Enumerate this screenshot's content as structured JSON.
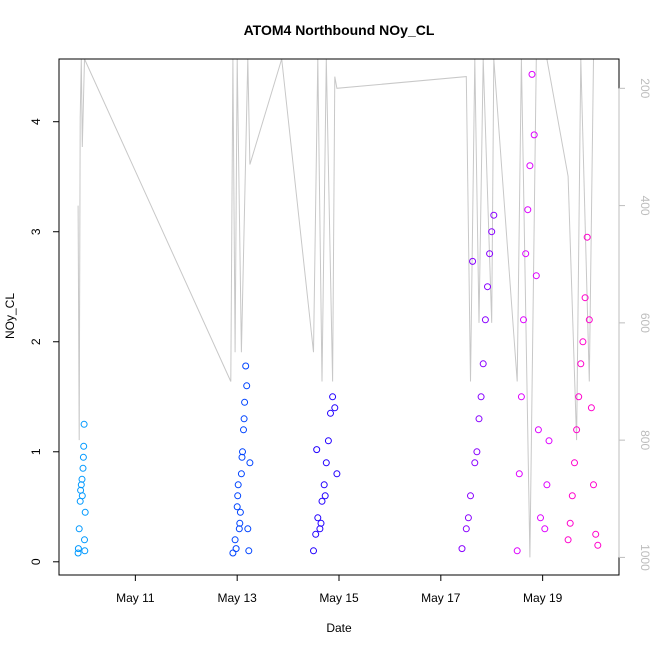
{
  "chart_data": {
    "type": "scatter",
    "title": "ATOM4 Northbound NOy_CL",
    "xlabel": "Date",
    "ylabel": "NOy_CL",
    "xlim": [
      "2018-05-09T12:00",
      "2018-05-20T12:00"
    ],
    "ylim": [
      -0.12,
      4.57
    ],
    "x_tick_labels": [
      "May 11",
      "May 13",
      "May 15",
      "May 17",
      "May 19"
    ],
    "x_ticks": [
      "2018-05-11",
      "2018-05-13",
      "2018-05-15",
      "2018-05-17",
      "2018-05-19"
    ],
    "y_ticks": [
      0,
      1,
      2,
      3,
      4
    ],
    "y_tick_labels": [
      "0",
      "1",
      "2",
      "3",
      "4"
    ],
    "right_axis": {
      "reversed": true,
      "ticks": [
        200,
        400,
        600,
        800,
        1000
      ],
      "tick_labels": [
        "200",
        "400",
        "600",
        "800",
        "1000"
      ],
      "ylim": [
        1030,
        150
      ],
      "color": "#bdbdbd"
    },
    "grid": false,
    "legend": "none",
    "series": [
      {
        "color": "#0099ff",
        "points": [
          [
            "2018-05-09T21:00",
            0.08
          ],
          [
            "2018-05-09T21:30",
            0.3
          ],
          [
            "2018-05-09T22:00",
            0.55
          ],
          [
            "2018-05-09T22:30",
            0.7
          ],
          [
            "2018-05-09T23:00",
            0.6
          ],
          [
            "2018-05-09T23:20",
            0.85
          ],
          [
            "2018-05-09T23:40",
            1.05
          ],
          [
            "2018-05-09T23:50",
            1.25
          ],
          [
            "2018-05-10T00:00",
            0.2
          ],
          [
            "2018-05-10T00:20",
            0.45
          ],
          [
            "2018-05-09T21:10",
            0.12
          ],
          [
            "2018-05-09T22:10",
            0.65
          ],
          [
            "2018-05-09T22:50",
            0.75
          ],
          [
            "2018-05-09T23:30",
            0.95
          ],
          [
            "2018-05-10T00:10",
            0.1
          ]
        ]
      },
      {
        "color": "#0044ff",
        "points": [
          [
            "2018-05-12T22:00",
            0.08
          ],
          [
            "2018-05-12T23:00",
            0.2
          ],
          [
            "2018-05-13T00:00",
            0.5
          ],
          [
            "2018-05-13T00:30",
            0.7
          ],
          [
            "2018-05-13T01:00",
            0.3
          ],
          [
            "2018-05-13T01:30",
            0.45
          ],
          [
            "2018-05-13T02:00",
            0.8
          ],
          [
            "2018-05-13T02:30",
            1.0
          ],
          [
            "2018-05-13T03:00",
            1.2
          ],
          [
            "2018-05-13T03:30",
            1.45
          ],
          [
            "2018-05-13T04:00",
            1.78
          ],
          [
            "2018-05-13T04:30",
            1.6
          ],
          [
            "2018-05-13T05:00",
            0.3
          ],
          [
            "2018-05-13T05:30",
            0.1
          ],
          [
            "2018-05-13T06:00",
            0.9
          ],
          [
            "2018-05-12T23:30",
            0.12
          ],
          [
            "2018-05-13T00:15",
            0.6
          ],
          [
            "2018-05-13T01:15",
            0.35
          ],
          [
            "2018-05-13T02:15",
            0.95
          ],
          [
            "2018-05-13T03:15",
            1.3
          ]
        ]
      },
      {
        "color": "#2200ff",
        "points": [
          [
            "2018-05-14T12:00",
            0.1
          ],
          [
            "2018-05-14T13:00",
            0.25
          ],
          [
            "2018-05-14T14:00",
            0.4
          ],
          [
            "2018-05-14T15:00",
            0.3
          ],
          [
            "2018-05-14T16:00",
            0.55
          ],
          [
            "2018-05-14T17:00",
            0.7
          ],
          [
            "2018-05-14T18:00",
            0.9
          ],
          [
            "2018-05-14T19:00",
            1.1
          ],
          [
            "2018-05-14T20:00",
            1.35
          ],
          [
            "2018-05-14T21:00",
            1.5
          ],
          [
            "2018-05-14T22:00",
            1.4
          ],
          [
            "2018-05-14T23:00",
            0.8
          ],
          [
            "2018-05-14T13:30",
            1.02
          ],
          [
            "2018-05-14T15:30",
            0.35
          ],
          [
            "2018-05-14T17:30",
            0.6
          ]
        ]
      },
      {
        "color": "#8800ff",
        "points": [
          [
            "2018-05-17T10:00",
            0.12
          ],
          [
            "2018-05-17T12:00",
            0.3
          ],
          [
            "2018-05-17T14:00",
            0.6
          ],
          [
            "2018-05-17T15:00",
            2.73
          ],
          [
            "2018-05-17T16:00",
            0.9
          ],
          [
            "2018-05-17T18:00",
            1.3
          ],
          [
            "2018-05-17T20:00",
            1.8
          ],
          [
            "2018-05-17T21:00",
            2.2
          ],
          [
            "2018-05-17T22:00",
            2.5
          ],
          [
            "2018-05-17T23:00",
            2.8
          ],
          [
            "2018-05-18T00:00",
            3.0
          ],
          [
            "2018-05-18T01:00",
            3.15
          ],
          [
            "2018-05-17T13:00",
            0.4
          ],
          [
            "2018-05-17T17:00",
            1.0
          ],
          [
            "2018-05-17T19:00",
            1.5
          ]
        ]
      },
      {
        "color": "#dd00ff",
        "points": [
          [
            "2018-05-18T12:00",
            0.1
          ],
          [
            "2018-05-18T13:00",
            0.8
          ],
          [
            "2018-05-18T14:00",
            1.5
          ],
          [
            "2018-05-18T15:00",
            2.2
          ],
          [
            "2018-05-18T16:00",
            2.8
          ],
          [
            "2018-05-18T17:00",
            3.2
          ],
          [
            "2018-05-18T18:00",
            3.6
          ],
          [
            "2018-05-18T19:00",
            4.43
          ],
          [
            "2018-05-18T20:00",
            3.88
          ],
          [
            "2018-05-18T21:00",
            2.6
          ],
          [
            "2018-05-18T22:00",
            1.2
          ],
          [
            "2018-05-18T23:00",
            0.4
          ],
          [
            "2018-05-19T01:00",
            0.3
          ],
          [
            "2018-05-19T02:00",
            0.7
          ],
          [
            "2018-05-19T03:00",
            1.1
          ]
        ]
      },
      {
        "color": "#ff00cc",
        "points": [
          [
            "2018-05-19T12:00",
            0.2
          ],
          [
            "2018-05-19T14:00",
            0.6
          ],
          [
            "2018-05-19T16:00",
            1.2
          ],
          [
            "2018-05-19T18:00",
            1.8
          ],
          [
            "2018-05-19T20:00",
            2.4
          ],
          [
            "2018-05-19T21:00",
            2.95
          ],
          [
            "2018-05-19T22:00",
            2.2
          ],
          [
            "2018-05-19T23:00",
            1.4
          ],
          [
            "2018-05-20T00:00",
            0.7
          ],
          [
            "2018-05-20T01:00",
            0.25
          ],
          [
            "2018-05-19T13:00",
            0.35
          ],
          [
            "2018-05-19T15:00",
            0.9
          ],
          [
            "2018-05-19T17:00",
            1.5
          ],
          [
            "2018-05-19T19:00",
            2.0
          ],
          [
            "2018-05-20T02:00",
            0.15
          ]
        ]
      }
    ],
    "background_line": {
      "color": "#c8c8c8",
      "axis": "right",
      "points": [
        [
          "2018-05-09T21:00",
          400
        ],
        [
          "2018-05-09T21:30",
          800
        ],
        [
          "2018-05-09T22:00",
          250
        ],
        [
          "2018-05-09T22:30",
          150
        ],
        [
          "2018-05-09T23:00",
          300
        ],
        [
          "2018-05-10T00:00",
          150
        ],
        [
          "2018-05-12T21:00",
          700
        ],
        [
          "2018-05-12T22:00",
          150
        ],
        [
          "2018-05-12T23:00",
          650
        ],
        [
          "2018-05-13T00:00",
          150
        ],
        [
          "2018-05-13T02:00",
          650
        ],
        [
          "2018-05-13T05:00",
          150
        ],
        [
          "2018-05-13T06:00",
          330
        ],
        [
          "2018-05-13T21:00",
          150
        ],
        [
          "2018-05-14T12:00",
          650
        ],
        [
          "2018-05-14T14:00",
          150
        ],
        [
          "2018-05-14T16:00",
          700
        ],
        [
          "2018-05-14T18:00",
          150
        ],
        [
          "2018-05-14T21:00",
          700
        ],
        [
          "2018-05-14T22:00",
          180
        ],
        [
          "2018-05-14T23:00",
          200
        ],
        [
          "2018-05-17T12:00",
          180
        ],
        [
          "2018-05-17T14:00",
          700
        ],
        [
          "2018-05-17T16:00",
          150
        ],
        [
          "2018-05-17T18:00",
          600
        ],
        [
          "2018-05-17T20:00",
          150
        ],
        [
          "2018-05-18T00:00",
          600
        ],
        [
          "2018-05-18T01:00",
          150
        ],
        [
          "2018-05-18T12:00",
          700
        ],
        [
          "2018-05-18T14:00",
          150
        ],
        [
          "2018-05-18T18:00",
          1000
        ],
        [
          "2018-05-18T21:00",
          150
        ],
        [
          "2018-05-19T02:00",
          150
        ],
        [
          "2018-05-19T12:00",
          350
        ],
        [
          "2018-05-19T16:00",
          800
        ],
        [
          "2018-05-19T18:00",
          150
        ],
        [
          "2018-05-19T22:00",
          700
        ],
        [
          "2018-05-20T00:00",
          150
        ]
      ]
    }
  }
}
